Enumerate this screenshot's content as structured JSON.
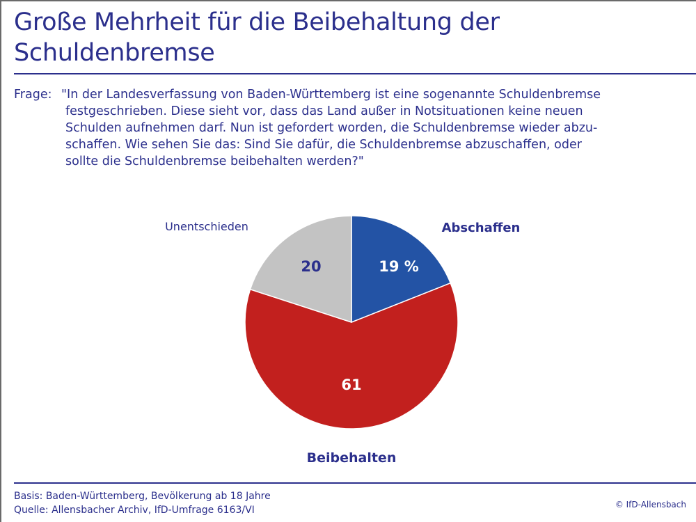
{
  "title": "Große Mehrheit für die Beibehaltung der Schuldenbremse",
  "question": {
    "label": "Frage:",
    "lines": [
      "\"In der Landesverfassung von Baden-Württemberg ist eine sogenannte Schuldenbremse",
      "festgeschrieben. Diese sieht vor, dass das Land außer in Notsituationen keine neuen",
      "Schulden aufnehmen darf. Nun ist gefordert worden, die Schuldenbremse wieder abzu-",
      "schaffen. Wie sehen Sie das: Sind Sie dafür, die Schuldenbremse abzuschaffen, oder",
      "sollte die Schuldenbremse beibehalten werden?\""
    ]
  },
  "chart_data": {
    "type": "pie",
    "title": "Große Mehrheit für die Beibehaltung der Schuldenbremse",
    "unit": "%",
    "start": "12 o'clock, clockwise",
    "slices": [
      {
        "name": "Abschaffen",
        "value": 19,
        "value_label": "19 %",
        "color": "#2353a5",
        "label_color": "#ffffff",
        "name_style": "bold"
      },
      {
        "name": "Beibehalten",
        "value": 61,
        "value_label": "61",
        "color": "#c2201e",
        "label_color": "#ffffff",
        "name_style": "bold"
      },
      {
        "name": "Unentschieden",
        "value": 20,
        "value_label": "20",
        "color": "#c3c3c3",
        "label_color": "#2b2f8c",
        "name_style": "normal"
      }
    ]
  },
  "footer": {
    "basis": "Basis: Baden-Württemberg, Bevölkerung ab 18 Jahre",
    "source": "Quelle: Allensbacher Archiv, IfD-Umfrage 6163/VI",
    "copyright": "© IfD-Allensbach"
  },
  "colors": {
    "text": "#2b2f8c",
    "frame": "#6a6a6a"
  }
}
